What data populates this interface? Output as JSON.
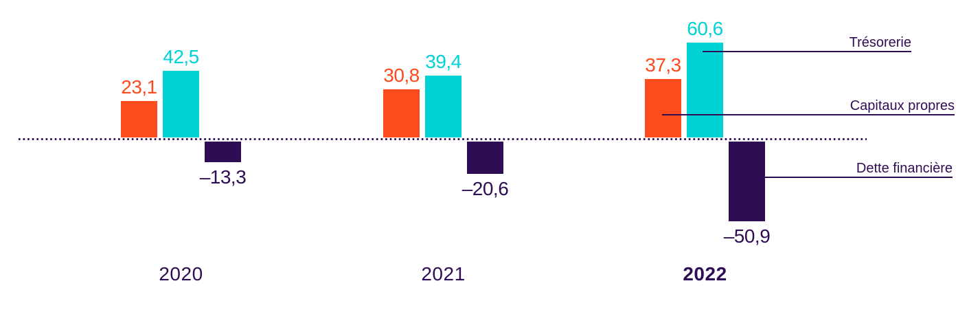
{
  "colors": {
    "orange": "#FC4C1D",
    "cyan": "#00D2D6",
    "purple": "#2F0D54"
  },
  "chart_data": {
    "type": "bar",
    "title": "",
    "categories": [
      "2020",
      "2021",
      "2022"
    ],
    "highlighted_category": "2022",
    "baseline": 0,
    "grid": false,
    "legend_position": "right",
    "series": [
      {
        "key": "equity",
        "name": "Capitaux propres",
        "color": "#FC4C1D",
        "values": [
          23.1,
          30.8,
          37.3
        ],
        "labels": [
          "23,1",
          "30,8",
          "37,3"
        ]
      },
      {
        "key": "treasury",
        "name": "Trésorerie",
        "color": "#00D2D6",
        "values": [
          42.5,
          39.4,
          60.6
        ],
        "labels": [
          "42,5",
          "39,4",
          "60,6"
        ]
      },
      {
        "key": "debt",
        "name": "Dette financière",
        "color": "#2F0D54",
        "values": [
          -13.3,
          -20.6,
          -50.9
        ],
        "labels": [
          "–13,3",
          "–20,6",
          "–50,9"
        ]
      }
    ],
    "annotations": [
      {
        "text": "Trésorerie",
        "series_key": "treasury"
      },
      {
        "text": "Capitaux propres",
        "series_key": "equity"
      },
      {
        "text": "Dette financière",
        "series_key": "debt"
      }
    ]
  }
}
